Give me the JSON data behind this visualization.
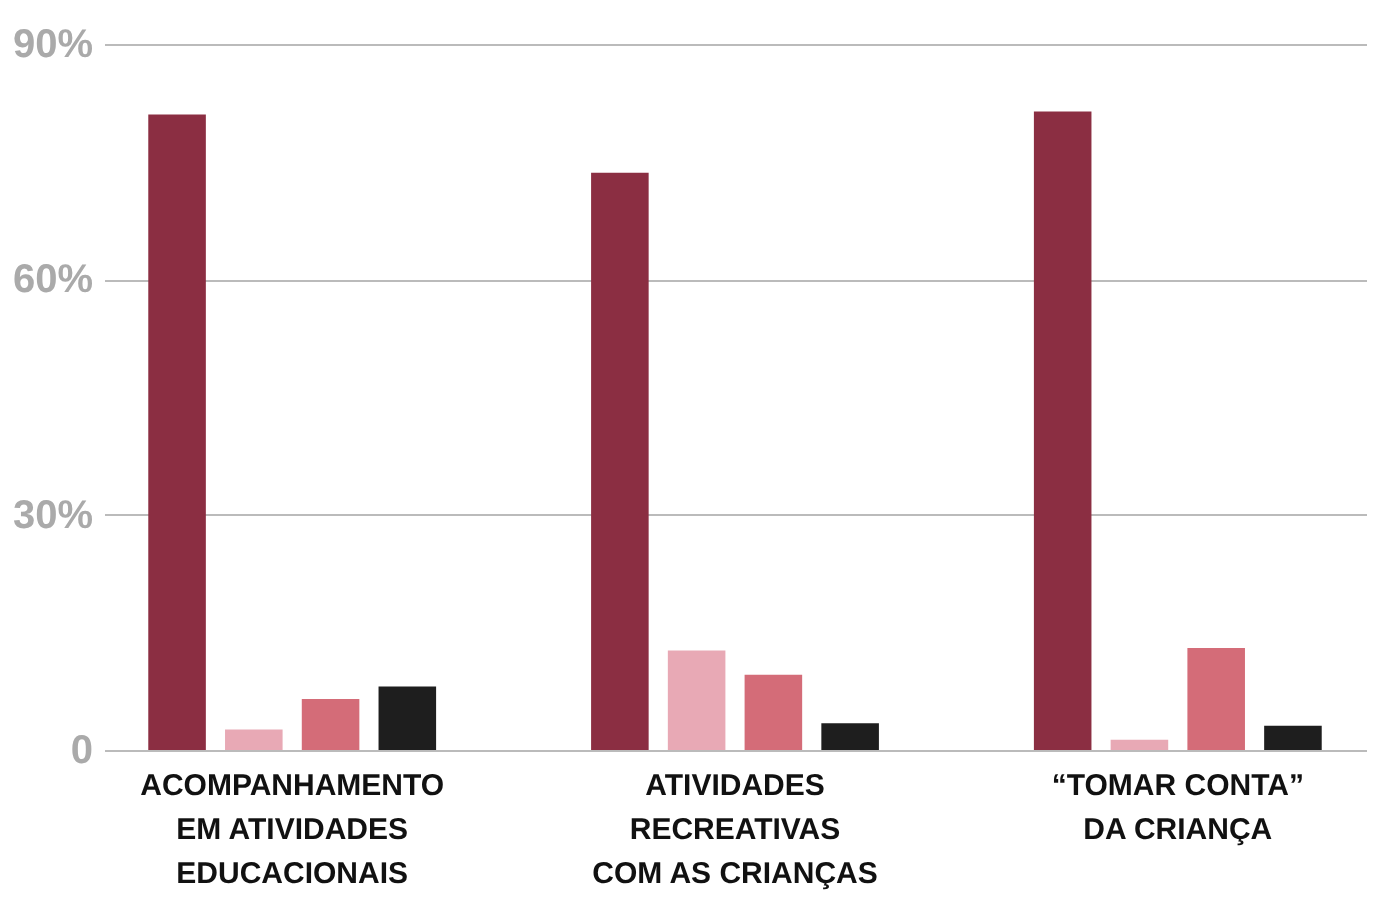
{
  "chart_data": {
    "type": "bar",
    "categories": [
      "ACOMPANHAMENTO\nEM ATIVIDADES\nEDUCACIONAIS",
      "ATIVIDADES\nRECREATIVAS\nCOM AS CRIANÇAS",
      "“TOMAR CONTA”\nDA CRIANÇA"
    ],
    "series": [
      {
        "color": "#8b2e42",
        "values": [
          81,
          73.6,
          81.4
        ]
      },
      {
        "color": "#e8a9b5",
        "values": [
          2.6,
          12.7,
          1.3
        ]
      },
      {
        "color": "#d46c78",
        "values": [
          6.5,
          9.6,
          13
        ]
      },
      {
        "color": "#1e1e1e",
        "values": [
          8.1,
          3.4,
          3.1
        ]
      }
    ],
    "ylim": [
      0,
      90
    ],
    "yticks": [
      0,
      {
        "value": 30,
        "label": "30%"
      },
      {
        "value": 60,
        "label": "60%"
      },
      {
        "value": 90,
        "label": "90%"
      }
    ],
    "grid": "y"
  }
}
